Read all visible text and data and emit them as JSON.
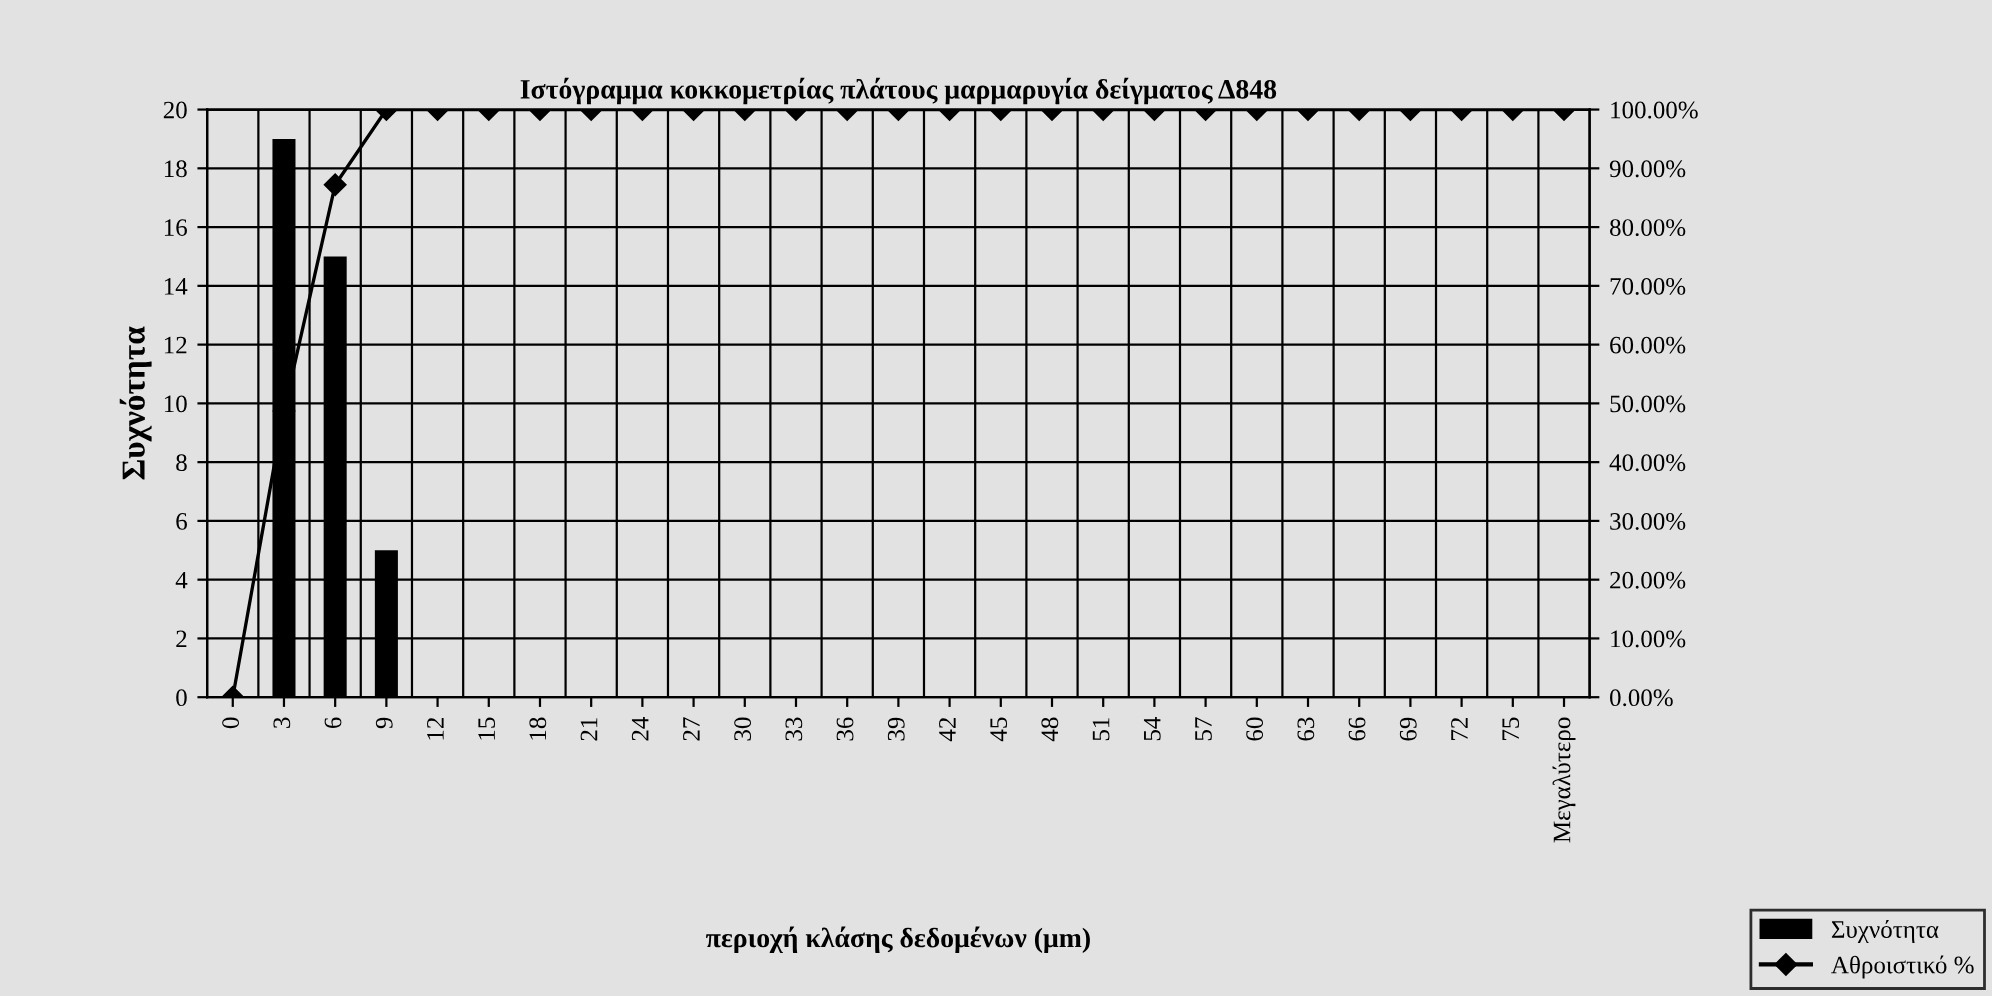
{
  "chart_data": {
    "type": "bar",
    "title": "Ιστόγραμμα κοκκομετρίας πλάτους μαρμαρυγία δείγματος Δ848",
    "xlabel": "περιοχή κλάσης δεδομένων (μm)",
    "ylabel": "Συχνότητα",
    "categories": [
      "0",
      "3",
      "6",
      "9",
      "12",
      "15",
      "18",
      "21",
      "24",
      "27",
      "30",
      "33",
      "36",
      "39",
      "42",
      "45",
      "48",
      "51",
      "54",
      "57",
      "60",
      "63",
      "66",
      "69",
      "72",
      "75",
      "Μεγαλύτερο"
    ],
    "series": [
      {
        "name": "Συχνότητα",
        "color": "#000000",
        "values": [
          0,
          19,
          15,
          5,
          0,
          0,
          0,
          0,
          0,
          0,
          0,
          0,
          0,
          0,
          0,
          0,
          0,
          0,
          0,
          0,
          0,
          0,
          0,
          0,
          0,
          0,
          0
        ]
      },
      {
        "name": "Αθροιστικό %",
        "type": "line",
        "axis": "y2",
        "color": "#000000",
        "marker": "diamond",
        "values": [
          0,
          48.7,
          87.2,
          100,
          100,
          100,
          100,
          100,
          100,
          100,
          100,
          100,
          100,
          100,
          100,
          100,
          100,
          100,
          100,
          100,
          100,
          100,
          100,
          100,
          100,
          100,
          100
        ]
      }
    ],
    "ylim": [
      0,
      20
    ],
    "yticks": [
      0,
      2,
      4,
      6,
      8,
      10,
      12,
      14,
      16,
      18,
      20
    ],
    "y2lim": [
      0,
      100
    ],
    "y2ticks": [
      {
        "value": 0,
        "label": "0.00%"
      },
      {
        "value": 10,
        "label": "10.00%"
      },
      {
        "value": 20,
        "label": "20.00%"
      },
      {
        "value": 30,
        "label": "30.00%"
      },
      {
        "value": 40,
        "label": "40.00%"
      },
      {
        "value": 50,
        "label": "50.00%"
      },
      {
        "value": 60,
        "label": "60.00%"
      },
      {
        "value": 70,
        "label": "70.00%"
      },
      {
        "value": 80,
        "label": "80.00%"
      },
      {
        "value": 90,
        "label": "90.00%"
      },
      {
        "value": 100,
        "label": "100.00%"
      }
    ],
    "grid": true,
    "legend": "bottom right"
  }
}
